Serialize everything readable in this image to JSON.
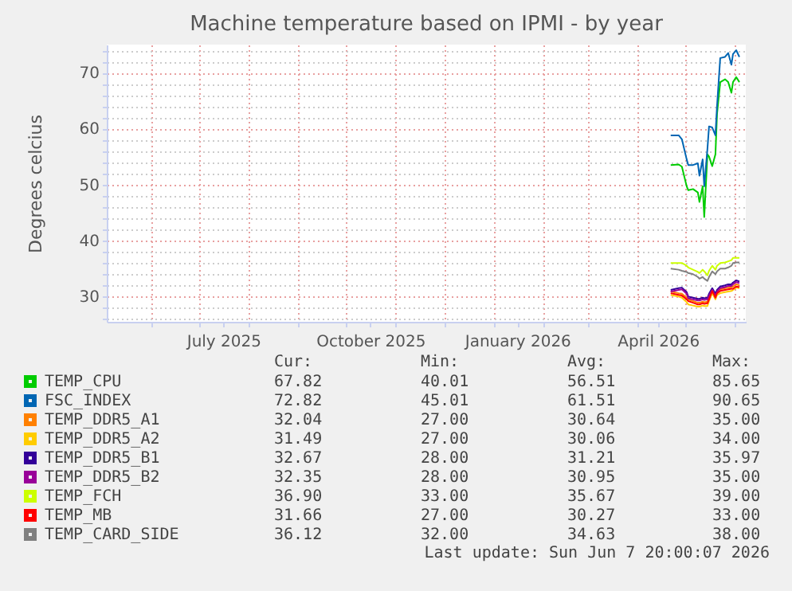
{
  "chart_data": {
    "type": "line",
    "title": "Machine temperature based on IPMI - by year",
    "ylabel": "Degrees celcius",
    "x": [
      "2026-04-22",
      "2026-04-27",
      "2026-04-29",
      "2026-05-02",
      "2026-05-03",
      "2026-05-06",
      "2026-05-09",
      "2026-05-10",
      "2026-05-12",
      "2026-05-13",
      "2026-05-15",
      "2026-05-16",
      "2026-05-18",
      "2026-05-20",
      "2026-05-21",
      "2026-05-23",
      "2026-05-26",
      "2026-05-28",
      "2026-05-30",
      "2026-05-31",
      "2026-06-02",
      "2026-06-04"
    ],
    "series": [
      {
        "name": "TEMP_CPU",
        "color": "#00cc00",
        "values": [
          53.5,
          53.6,
          53.2,
          49.7,
          49,
          49.2,
          48.6,
          46.9,
          49.7,
          44.2,
          55.4,
          55,
          53.3,
          55.4,
          62.6,
          68.3,
          68.8,
          68.3,
          66.4,
          68.3,
          69.2,
          68.3
        ]
      },
      {
        "name": "FSC_INDEX",
        "color": "#0066b3",
        "values": [
          58.8,
          58.8,
          58.1,
          54.5,
          53.5,
          53.5,
          53.8,
          51.6,
          54.5,
          49.7,
          56.4,
          60.4,
          60.2,
          58.8,
          64,
          72.6,
          72.8,
          73.5,
          71.4,
          73.3,
          74,
          72.8
        ]
      },
      {
        "name": "TEMP_DDR5_A1",
        "color": "#ff8000",
        "values": [
          30.9,
          30.6,
          30.5,
          29.8,
          29.5,
          29.2,
          28.9,
          28.9,
          29.1,
          29,
          29.1,
          29.8,
          31.2,
          30,
          30.9,
          31.3,
          31.5,
          31.6,
          31.7,
          31.8,
          32.2,
          32
        ]
      },
      {
        "name": "TEMP_DDR5_A2",
        "color": "#ffcc00",
        "values": [
          30.3,
          30,
          29.8,
          29,
          28.6,
          28.4,
          28.2,
          28.2,
          28.4,
          28.3,
          28.3,
          29.2,
          30.6,
          29.5,
          30.3,
          30.6,
          30.8,
          30.9,
          31,
          31.2,
          31.6,
          31.5
        ]
      },
      {
        "name": "TEMP_DDR5_B1",
        "color": "#330099",
        "values": [
          31.2,
          31.5,
          31.6,
          30.8,
          30,
          29.8,
          29.6,
          29.6,
          29.8,
          29.7,
          29.8,
          30.5,
          31.5,
          30.5,
          31.2,
          31.8,
          32,
          32.2,
          32.2,
          32.5,
          32.9,
          32.7
        ]
      },
      {
        "name": "TEMP_DDR5_B2",
        "color": "#990099",
        "values": [
          30.9,
          31.2,
          31.3,
          30.5,
          29.7,
          29.5,
          29.3,
          29.3,
          29.5,
          29.4,
          29.5,
          30.2,
          31.2,
          30.2,
          30.9,
          31.5,
          31.7,
          31.9,
          31.9,
          32.2,
          32.6,
          32.4
        ]
      },
      {
        "name": "TEMP_FCH",
        "color": "#ccff00",
        "values": [
          36,
          36,
          36,
          35.5,
          35.2,
          34.8,
          34.4,
          34.2,
          34.8,
          34.5,
          33.8,
          34.6,
          35.5,
          34.8,
          35.5,
          36,
          36.1,
          36.3,
          36.5,
          36.9,
          36.9,
          36.9
        ]
      },
      {
        "name": "TEMP_MB",
        "color": "#ff0000",
        "values": [
          30.6,
          30.3,
          30.2,
          29.5,
          29.2,
          28.9,
          28.6,
          28.6,
          28.8,
          28.7,
          28.8,
          29.5,
          31,
          29.8,
          30.6,
          31,
          31.2,
          31.3,
          31.4,
          31.4,
          31.8,
          31.7
        ]
      },
      {
        "name": "TEMP_CARD_SIDE",
        "color": "#808080",
        "values": [
          35,
          34.8,
          34.6,
          34.4,
          34.2,
          34,
          33.5,
          33.2,
          33.5,
          33.2,
          32.8,
          33.5,
          34.5,
          34,
          34.5,
          35,
          35,
          35.2,
          35.5,
          36,
          36.1,
          36.1
        ]
      }
    ],
    "xlim": [
      "2025-05-04",
      "2026-06-08"
    ],
    "xticks": [
      {
        "value": "2025-06-01",
        "label": null
      },
      {
        "value": "2025-07-01",
        "label": null
      },
      {
        "value": "2025-07-16",
        "label": "July 2025"
      },
      {
        "value": "2025-08-01",
        "label": null
      },
      {
        "value": "2025-09-01",
        "label": null
      },
      {
        "value": "2025-10-01",
        "label": null
      },
      {
        "value": "2025-10-16",
        "label": "October 2025"
      },
      {
        "value": "2025-11-01",
        "label": null
      },
      {
        "value": "2025-12-01",
        "label": null
      },
      {
        "value": "2026-01-01",
        "label": null
      },
      {
        "value": "2026-01-16",
        "label": "January 2026"
      },
      {
        "value": "2026-02-01",
        "label": null
      },
      {
        "value": "2026-03-01",
        "label": null
      },
      {
        "value": "2026-04-01",
        "label": null
      },
      {
        "value": "2026-04-14",
        "label": "April 2026"
      },
      {
        "value": "2026-05-01",
        "label": null
      },
      {
        "value": "2026-06-01",
        "label": null
      }
    ],
    "ylim": [
      25.5,
      75
    ],
    "yticks": [
      {
        "value": 26,
        "label": null
      },
      {
        "value": 28,
        "label": null
      },
      30,
      {
        "value": 32,
        "label": null
      },
      {
        "value": 34,
        "label": null
      },
      {
        "value": 36,
        "label": null
      },
      {
        "value": 38,
        "label": null
      },
      40,
      {
        "value": 42,
        "label": null
      },
      {
        "value": 44,
        "label": null
      },
      {
        "value": 46,
        "label": null
      },
      {
        "value": 48,
        "label": null
      },
      50,
      {
        "value": 52,
        "label": null
      },
      {
        "value": 54,
        "label": null
      },
      {
        "value": 56,
        "label": null
      },
      {
        "value": 58,
        "label": null
      },
      60,
      {
        "value": 62,
        "label": null
      },
      {
        "value": 64,
        "label": null
      },
      {
        "value": 66,
        "label": null
      },
      {
        "value": 68,
        "label": null
      },
      70,
      {
        "value": 72,
        "label": null
      },
      {
        "value": 74,
        "label": null
      }
    ],
    "grid": true,
    "legend": "bottom",
    "annotations": [
      "Cur:",
      "Min:",
      "Avg:",
      "Max:",
      "67.82",
      "40.01",
      "56.51",
      "85.65",
      "72.82",
      "45.01",
      "61.51",
      "90.65",
      "32.04",
      "27.00",
      "30.64",
      "35.00",
      "31.49",
      "27.00",
      "30.06",
      "34.00",
      "32.67",
      "28.00",
      "31.21",
      "35.97",
      "32.35",
      "28.00",
      "30.95",
      "35.00",
      "36.90",
      "33.00",
      "35.67",
      "39.00",
      "31.66",
      "27.00",
      "30.27",
      "33.00",
      "36.12",
      "32.00",
      "34.63",
      "38.00",
      "Last update: Sun Jun  7 20:00:07 2026"
    ]
  }
}
